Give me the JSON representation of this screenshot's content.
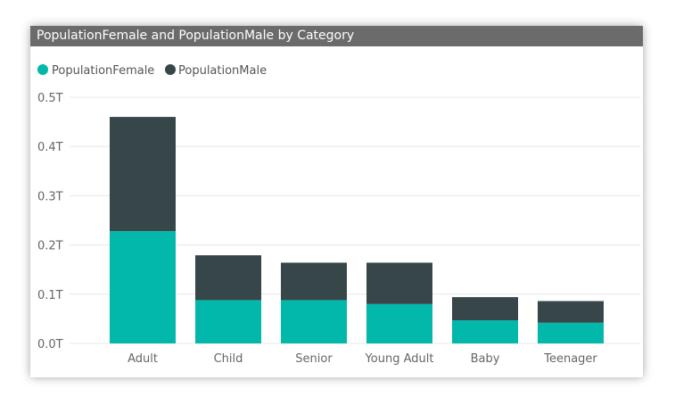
{
  "title": "PopulationFemale and PopulationMale by Category",
  "legend": [
    {
      "label": "PopulationFemale",
      "color": "#01b8aa"
    },
    {
      "label": "PopulationMale",
      "color": "#374649"
    }
  ],
  "colors": {
    "title_bar": "#6b6b6b",
    "gridline": "#e8e8e8"
  },
  "chart_data": {
    "type": "bar",
    "stacked": true,
    "categories": [
      "Adult",
      "Child",
      "Senior",
      "Young Adult",
      "Baby",
      "Teenager"
    ],
    "series": [
      {
        "name": "PopulationFemale",
        "color": "#01b8aa",
        "values": [
          0.228,
          0.088,
          0.088,
          0.08,
          0.047,
          0.042
        ]
      },
      {
        "name": "PopulationMale",
        "color": "#374649",
        "values": [
          0.232,
          0.091,
          0.076,
          0.084,
          0.047,
          0.044
        ]
      }
    ],
    "yticks": [
      {
        "value": 0.0,
        "label": "0.0T"
      },
      {
        "value": 0.1,
        "label": "0.1T"
      },
      {
        "value": 0.2,
        "label": "0.2T"
      },
      {
        "value": 0.3,
        "label": "0.3T"
      },
      {
        "value": 0.4,
        "label": "0.4T"
      },
      {
        "value": 0.5,
        "label": "0.5T"
      }
    ],
    "ylim": [
      0,
      0.5
    ],
    "grid": true,
    "legend_position": "top-left"
  }
}
